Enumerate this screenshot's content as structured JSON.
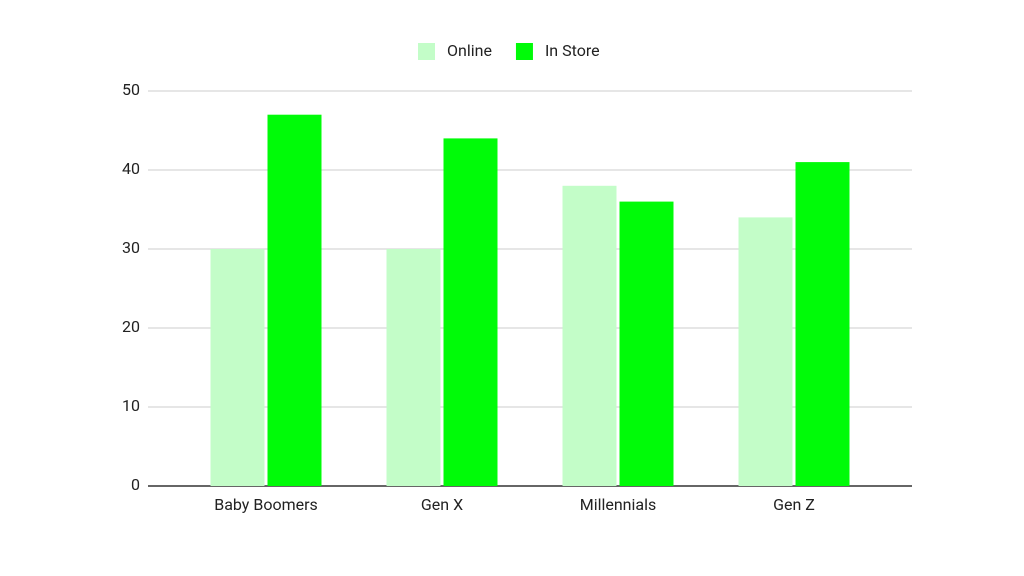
{
  "chart_data": {
    "type": "bar",
    "categories": [
      "Baby Boomers",
      "Gen X",
      "Millennials",
      "Gen Z"
    ],
    "series": [
      {
        "name": "Online",
        "color": "#c3fdc8",
        "values": [
          30,
          30,
          38,
          34
        ]
      },
      {
        "name": "In Store",
        "color": "#00fb08",
        "values": [
          47,
          44,
          36,
          41
        ]
      }
    ],
    "ylim": [
      0,
      50
    ],
    "yticks": [
      0,
      10,
      20,
      30,
      40,
      50
    ],
    "grid": true,
    "legend": "top"
  }
}
